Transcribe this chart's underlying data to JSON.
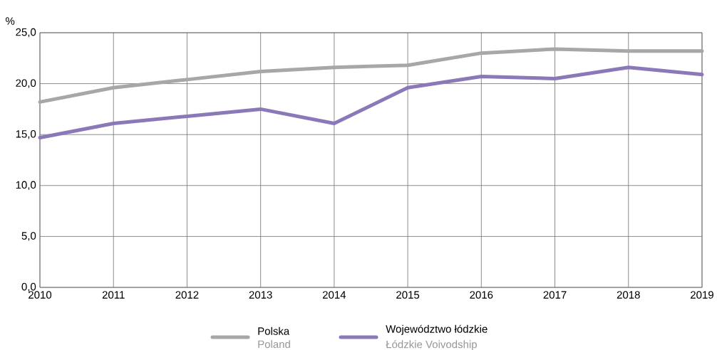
{
  "chart_data": {
    "type": "line",
    "ylabel": "%",
    "x": [
      2010,
      2011,
      2012,
      2013,
      2014,
      2015,
      2016,
      2017,
      2018,
      2019
    ],
    "series": [
      {
        "name": "Polska",
        "color": "#a7a7aa",
        "values": [
          18.2,
          19.6,
          20.4,
          21.2,
          21.6,
          21.8,
          23.0,
          23.4,
          23.2,
          23.2
        ]
      },
      {
        "name": "Województwo łódzkie",
        "color": "#8b78b8",
        "values": [
          14.7,
          16.1,
          16.8,
          17.5,
          16.1,
          19.6,
          20.7,
          20.5,
          21.6,
          20.9
        ]
      }
    ],
    "annotations": [
      "Poland",
      "Łódzkie Voivodship"
    ],
    "xlim": [
      2010,
      2019
    ],
    "xticks": [
      2010,
      2011,
      2012,
      2013,
      2014,
      2015,
      2016,
      2017,
      2018,
      2019
    ],
    "ylim": [
      0,
      25
    ],
    "yticks": [
      {
        "value": 0,
        "label": "0,0"
      },
      {
        "value": 5,
        "label": "5,0"
      },
      {
        "value": 10,
        "label": "10,0"
      },
      {
        "value": 15,
        "label": "15,0"
      },
      {
        "value": 20,
        "label": "20,0"
      },
      {
        "value": 25,
        "label": "25,0"
      }
    ],
    "grid": true,
    "legend": "bottom",
    "marker": "none",
    "line_style": "solid"
  }
}
